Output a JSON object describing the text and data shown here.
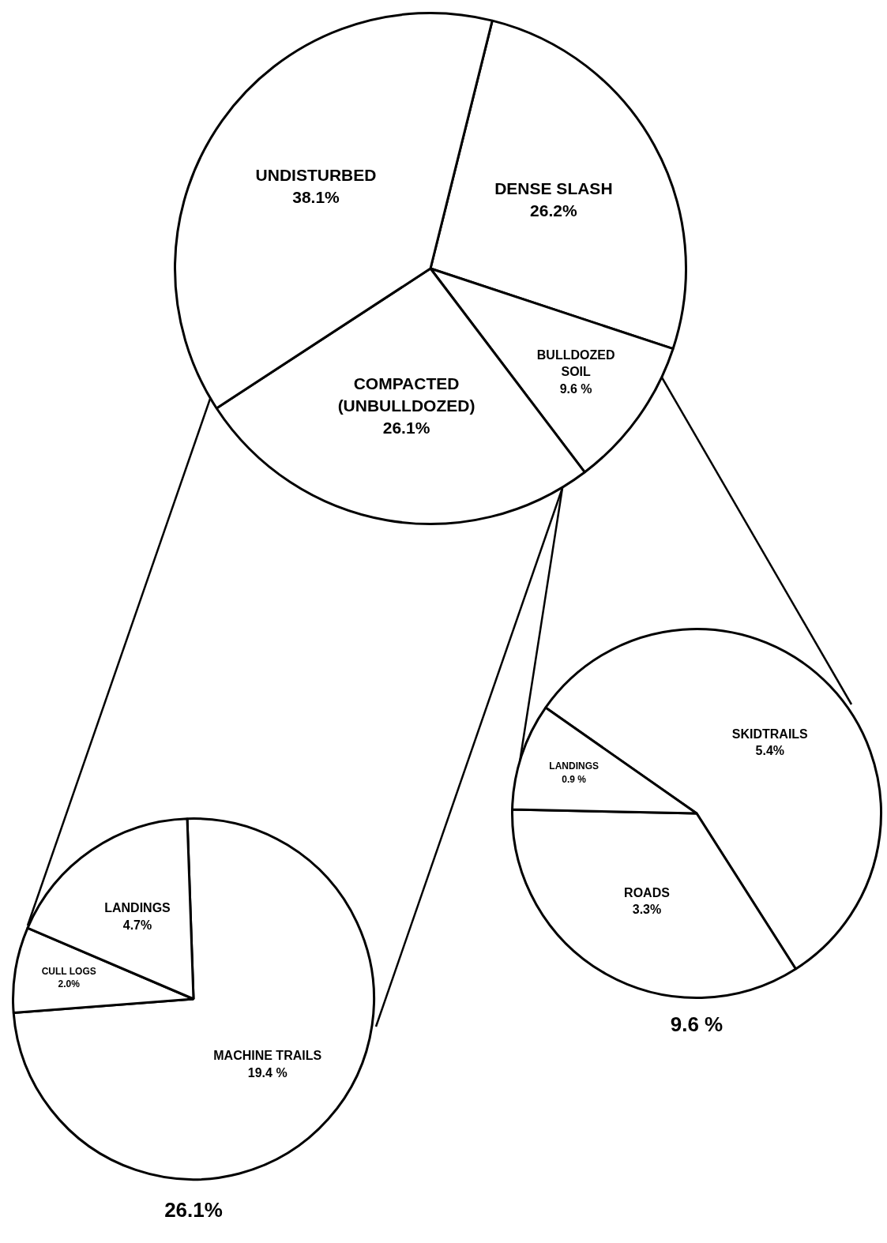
{
  "chart_data": [
    {
      "type": "pie",
      "categories": [
        "DENSE SLASH",
        "BULLDOZED\nSOIL",
        "COMPACTED\n(UNBULLDOZED)",
        "UNDISTURBED"
      ],
      "values": [
        26.2,
        9.6,
        26.1,
        38.1
      ],
      "value_labels": [
        "26.2%",
        "9.6 %",
        "26.1%",
        "38.1%"
      ],
      "colors": [
        "#ffffff",
        "#ffffff",
        "#ffffff",
        "#ffffff"
      ]
    },
    {
      "type": "pie",
      "categories": [
        "MACHINE TRAILS",
        "CULL LOGS",
        "LANDINGS"
      ],
      "values": [
        19.4,
        2.0,
        4.7
      ],
      "value_labels": [
        "19.4 %",
        "2.0%",
        "4.7%"
      ],
      "colors": [
        "#ffffff",
        "#ffffff",
        "#ffffff"
      ],
      "annotations": [
        "26.1%"
      ]
    },
    {
      "type": "pie",
      "categories": [
        "SKIDTRAILS",
        "ROADS",
        "LANDINGS"
      ],
      "values": [
        5.4,
        3.3,
        0.9
      ],
      "value_labels": [
        "5.4%",
        "3.3%",
        "0.9 %"
      ],
      "colors": [
        "#ffffff",
        "#ffffff",
        "#ffffff"
      ],
      "annotations": [
        "9.6 %"
      ]
    }
  ]
}
